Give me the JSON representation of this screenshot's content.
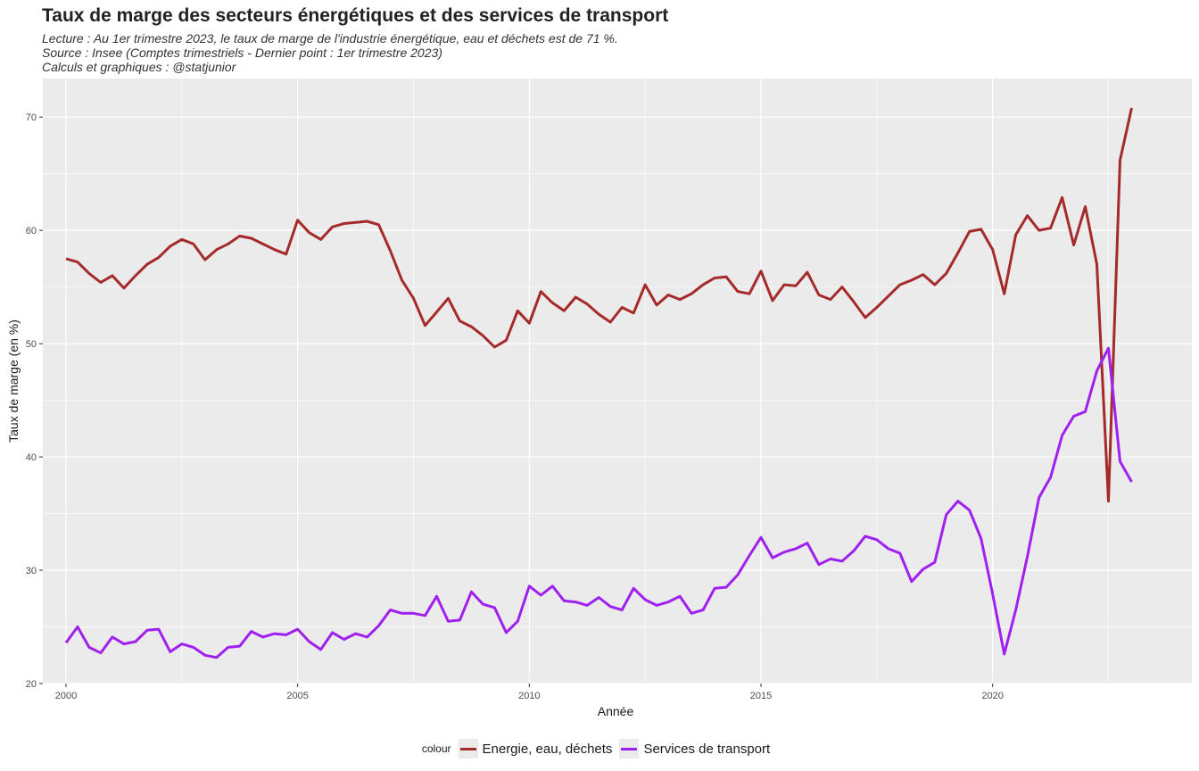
{
  "header": {
    "title": "Taux de marge des secteurs énergétiques et des services de transport",
    "subtitle_lines": [
      "Lecture : Au 1er trimestre 2023, le taux de marge de l'industrie énergétique, eau et déchets est de 71 %.",
      "Source : Insee (Comptes trimestriels - Dernier point : 1er trimestre 2023)",
      "Calculs et graphiques : @statjunior"
    ]
  },
  "legend": {
    "title": "colour",
    "items": [
      "Energie, eau, déchets",
      "Services de transport"
    ]
  },
  "colors": {
    "energie": "#a52a2a",
    "transport": "#a020f0",
    "panel": "#ebebeb",
    "grid": "#ffffff"
  },
  "chart_data": {
    "type": "line",
    "title": "Taux de marge des secteurs énergétiques et des services de transport",
    "xlabel": "Année",
    "ylabel": "Taux de marge (en %)",
    "xlim": [
      1999.5,
      2024.3
    ],
    "ylim": [
      20,
      73.4
    ],
    "x_ticks": [
      2000,
      2005,
      2010,
      2015,
      2020
    ],
    "y_ticks": [
      20,
      30,
      40,
      50,
      60,
      70
    ],
    "grid": true,
    "legend_position": "bottom",
    "x": [
      2000.0,
      2000.25,
      2000.5,
      2000.75,
      2001.0,
      2001.25,
      2001.5,
      2001.75,
      2002.0,
      2002.25,
      2002.5,
      2002.75,
      2003.0,
      2003.25,
      2003.5,
      2003.75,
      2004.0,
      2004.25,
      2004.5,
      2004.75,
      2005.0,
      2005.25,
      2005.5,
      2005.75,
      2006.0,
      2006.25,
      2006.5,
      2006.75,
      2007.0,
      2007.25,
      2007.5,
      2007.75,
      2008.0,
      2008.25,
      2008.5,
      2008.75,
      2009.0,
      2009.25,
      2009.5,
      2009.75,
      2010.0,
      2010.25,
      2010.5,
      2010.75,
      2011.0,
      2011.25,
      2011.5,
      2011.75,
      2012.0,
      2012.25,
      2012.5,
      2012.75,
      2013.0,
      2013.25,
      2013.5,
      2013.75,
      2014.0,
      2014.25,
      2014.5,
      2014.75,
      2015.0,
      2015.25,
      2015.5,
      2015.75,
      2016.0,
      2016.25,
      2016.5,
      2016.75,
      2017.0,
      2017.25,
      2017.5,
      2017.75,
      2018.0,
      2018.25,
      2018.5,
      2018.75,
      2019.0,
      2019.25,
      2019.5,
      2019.75,
      2020.0,
      2020.25,
      2020.5,
      2020.75,
      2021.0,
      2021.25,
      2021.5,
      2021.75,
      2022.0,
      2022.25,
      2022.5,
      2022.75,
      2023.0
    ],
    "series": [
      {
        "name": "Energie, eau, déchets",
        "color": "#a52a2a",
        "values": [
          57.5,
          57.2,
          56.2,
          55.4,
          56.0,
          54.9,
          56.0,
          57.0,
          57.6,
          58.6,
          59.2,
          58.8,
          57.4,
          58.3,
          58.8,
          59.5,
          59.3,
          58.8,
          58.3,
          57.9,
          60.9,
          59.8,
          59.2,
          60.3,
          60.6,
          60.7,
          60.8,
          60.5,
          58.2,
          55.6,
          54.0,
          51.6,
          52.8,
          54.0,
          52.0,
          51.5,
          50.7,
          49.7,
          50.3,
          52.9,
          51.8,
          54.6,
          53.6,
          52.9,
          54.1,
          53.5,
          52.6,
          51.9,
          53.2,
          52.7,
          55.2,
          53.4,
          54.3,
          53.9,
          54.4,
          55.2,
          55.8,
          55.9,
          54.6,
          54.4,
          56.4,
          53.8,
          55.2,
          55.1,
          56.3,
          54.3,
          53.9,
          55.0,
          53.7,
          52.3,
          53.2,
          54.2,
          55.2,
          55.6,
          56.1,
          55.2,
          56.2,
          58.0,
          59.9,
          60.1,
          58.3,
          54.4,
          59.6,
          61.3,
          60.0,
          60.2,
          62.9,
          58.7,
          62.1,
          57.0,
          36.1,
          66.2,
          70.8
        ]
      },
      {
        "name": "Services de transport",
        "color": "#a020f0",
        "values": [
          23.6,
          25.0,
          23.2,
          22.7,
          24.1,
          23.5,
          23.7,
          24.7,
          24.8,
          22.8,
          23.5,
          23.2,
          22.5,
          22.3,
          23.2,
          23.3,
          24.6,
          24.1,
          24.4,
          24.3,
          24.8,
          23.7,
          23.0,
          24.5,
          23.9,
          24.4,
          24.1,
          25.1,
          26.5,
          26.2,
          26.2,
          26.0,
          27.7,
          25.5,
          25.6,
          28.1,
          27.0,
          26.7,
          24.5,
          25.5,
          28.6,
          27.8,
          28.6,
          27.3,
          27.2,
          26.9,
          27.6,
          26.8,
          26.5,
          28.4,
          27.4,
          26.9,
          27.2,
          27.7,
          26.2,
          26.5,
          28.4,
          28.5,
          29.6,
          31.3,
          32.9,
          31.1,
          31.6,
          31.9,
          32.4,
          30.5,
          31.0,
          30.8,
          31.7,
          33.0,
          32.7,
          31.9,
          31.5,
          29.0,
          30.1,
          30.7,
          34.9,
          36.1,
          35.3,
          32.8,
          27.9,
          22.6,
          26.5,
          31.2,
          36.4,
          38.2,
          41.9,
          43.6,
          44.0,
          47.6,
          49.6,
          39.6,
          37.8
        ]
      }
    ]
  }
}
